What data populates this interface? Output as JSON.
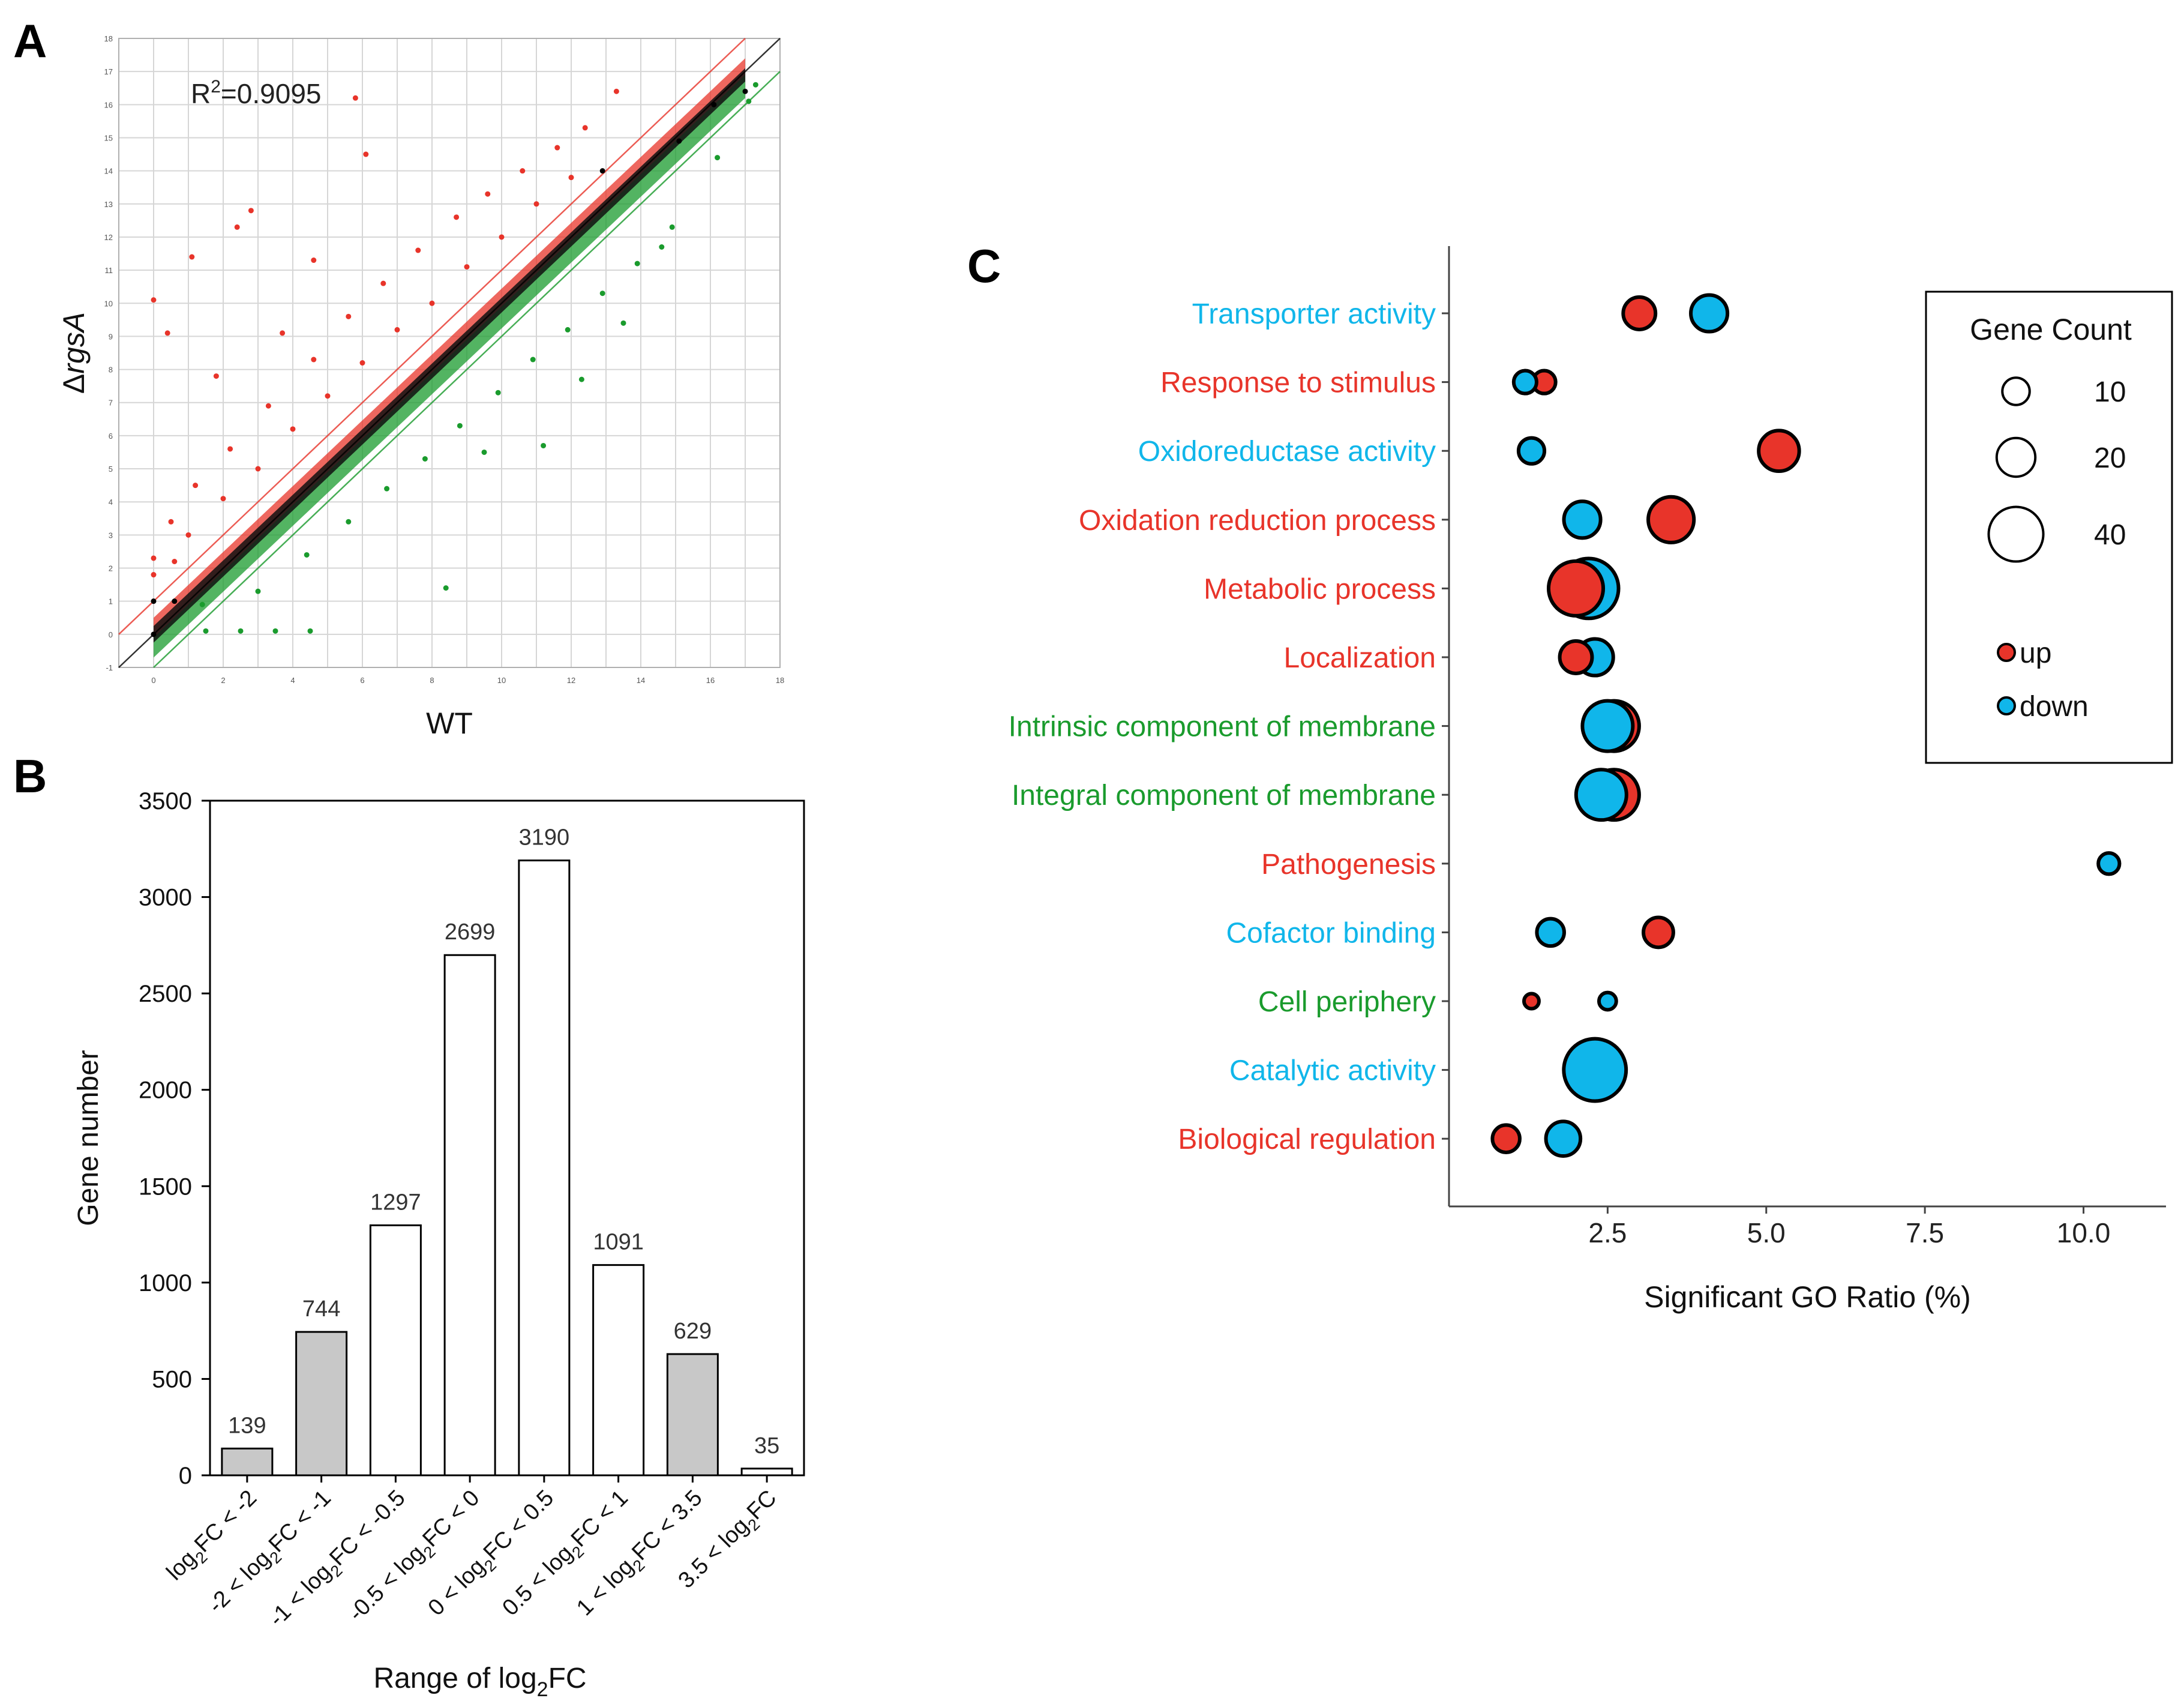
{
  "panels": {
    "a": "A",
    "b": "B",
    "c": "C"
  },
  "colors": {
    "red": "#e8342a",
    "green": "#1a9b2d",
    "blue": "#10b6ea",
    "black": "#000000",
    "bar_gray": "#c8c8c8",
    "grid": "#d6d6d6"
  },
  "chart_data": [
    {
      "id": "A",
      "type": "scatter",
      "title": "",
      "xlabel": "WT",
      "ylabel_prefix": "Δ",
      "ylabel_italic": "rgsA",
      "annotation_base": "R",
      "annotation_sup": "2",
      "annotation_value": "=0.9095",
      "xlim": [
        -1,
        18
      ],
      "ylim": [
        -1,
        18
      ],
      "xticks": [
        0,
        2,
        4,
        6,
        8,
        10,
        12,
        14,
        16,
        18
      ],
      "yticks": [
        -1,
        0,
        1,
        2,
        3,
        4,
        5,
        6,
        7,
        8,
        9,
        10,
        11,
        12,
        13,
        14,
        15,
        16,
        17,
        18
      ],
      "grid": true,
      "reference_lines": [
        {
          "name": "y = x",
          "offset": 0,
          "color": "#000000"
        },
        {
          "name": "up threshold",
          "offset": 1,
          "color": "#e8342a"
        },
        {
          "name": "down threshold",
          "offset": -1,
          "color": "#1a9b2d"
        }
      ],
      "series": [
        {
          "color": "#e8342a",
          "points": [
            [
              0,
              10.1
            ],
            [
              0.4,
              9.1
            ],
            [
              1.1,
              11.4
            ],
            [
              2.4,
              12.3
            ],
            [
              2.8,
              12.8
            ],
            [
              5.8,
              16.2
            ],
            [
              6.1,
              14.5
            ],
            [
              3.7,
              9.1
            ],
            [
              4.6,
              11.3
            ],
            [
              1.8,
              7.8
            ],
            [
              0.5,
              3.4
            ],
            [
              1.2,
              4.5
            ],
            [
              2.2,
              5.6
            ],
            [
              3.3,
              6.9
            ],
            [
              4.6,
              8.3
            ],
            [
              5.6,
              9.6
            ],
            [
              6.6,
              10.6
            ],
            [
              7.6,
              11.6
            ],
            [
              8.7,
              12.6
            ],
            [
              9.6,
              13.3
            ],
            [
              10.6,
              14.0
            ],
            [
              11.6,
              14.7
            ],
            [
              12.4,
              15.3
            ],
            [
              13.3,
              16.4
            ],
            [
              0.0,
              1.8
            ],
            [
              0.0,
              2.3
            ],
            [
              0.6,
              2.2
            ],
            [
              1.0,
              3.0
            ],
            [
              2.0,
              4.1
            ],
            [
              3.0,
              5.0
            ],
            [
              4.0,
              6.2
            ],
            [
              5.0,
              7.2
            ],
            [
              6.0,
              8.2
            ],
            [
              7.0,
              9.2
            ],
            [
              8.0,
              10.0
            ],
            [
              9.0,
              11.1
            ],
            [
              10.0,
              12.0
            ],
            [
              11.0,
              13.0
            ],
            [
              12.0,
              13.8
            ]
          ]
        },
        {
          "color": "#1a9b2d",
          "points": [
            [
              8.4,
              1.4
            ],
            [
              11.2,
              5.7
            ],
            [
              14.6,
              11.7
            ],
            [
              9.5,
              5.5
            ],
            [
              12.3,
              7.7
            ],
            [
              13.5,
              9.4
            ],
            [
              1.5,
              0.1
            ],
            [
              2.5,
              0.1
            ],
            [
              3.5,
              0.1
            ],
            [
              4.5,
              0.1
            ],
            [
              1.4,
              0.9
            ],
            [
              3.0,
              1.3
            ],
            [
              4.4,
              2.4
            ],
            [
              5.6,
              3.4
            ],
            [
              6.7,
              4.4
            ],
            [
              7.8,
              5.3
            ],
            [
              8.8,
              6.3
            ],
            [
              9.9,
              7.3
            ],
            [
              10.9,
              8.3
            ],
            [
              11.9,
              9.2
            ],
            [
              12.9,
              10.3
            ],
            [
              13.9,
              11.2
            ],
            [
              14.9,
              12.3
            ],
            [
              16.2,
              14.4
            ],
            [
              17.1,
              16.1
            ],
            [
              17.3,
              16.6
            ]
          ]
        },
        {
          "color": "#000000",
          "points": [
            [
              0.0,
              0.0
            ],
            [
              0.0,
              1.0
            ],
            [
              0.6,
              1.0
            ],
            [
              16.1,
              16.0
            ],
            [
              17.0,
              16.4
            ],
            [
              12.9,
              14.0
            ],
            [
              15.1,
              14.9
            ]
          ]
        }
      ]
    },
    {
      "id": "B",
      "type": "bar",
      "title": "",
      "xlabel": "Range of log2FC",
      "ylabel": "Gene number",
      "ylim": [
        0,
        3500
      ],
      "yticks": [
        0,
        500,
        1000,
        1500,
        2000,
        2500,
        3000,
        3500
      ],
      "categories": [
        "log2FC < -2",
        "-2 < log2FC < -1",
        "-1 < log2FC < -0.5",
        "-0.5 < log2FC < 0",
        "0 < log2FC < 0.5",
        "0.5 < log2FC < 1",
        "1 < log2FC < 3.5",
        "3.5 < log2FC"
      ],
      "values": [
        139,
        744,
        1297,
        2699,
        3190,
        1091,
        629,
        35
      ],
      "value_labels": [
        "139",
        "744",
        "1297",
        "2699",
        "3190",
        "1091",
        "629",
        "35"
      ],
      "bar_fill": [
        "gray",
        "gray",
        "white",
        "white",
        "white",
        "white",
        "gray",
        "white"
      ]
    },
    {
      "id": "C",
      "type": "scatter",
      "title": "",
      "xlabel": "Significant GO Ratio (%)",
      "xlim": [
        0,
        11.3
      ],
      "xticks": [
        "2.5",
        "5.0",
        "7.5",
        "10.0"
      ],
      "categories": [
        "Transporter activity",
        "Response to stimulus",
        "Oxidoreductase activity",
        "Oxidation reduction process",
        "Metabolic process",
        "Localization",
        "Intrinsic component of membrane",
        "Integral component of membrane",
        "Pathogenesis",
        "Cofactor binding",
        "Cell periphery",
        "Catalytic activity",
        "Biological regulation"
      ],
      "category_colors": [
        "#10b6ea",
        "#e8342a",
        "#10b6ea",
        "#e8342a",
        "#e8342a",
        "#e8342a",
        "#1a9b2d",
        "#1a9b2d",
        "#e8342a",
        "#10b6ea",
        "#1a9b2d",
        "#10b6ea",
        "#e8342a"
      ],
      "legend": {
        "title": "Gene Count",
        "sizes": [
          10,
          20,
          40
        ],
        "size_labels": [
          "10",
          "20",
          "40"
        ],
        "series_labels": [
          "up",
          "down"
        ]
      },
      "series": [
        {
          "name": "up",
          "color": "#e8342a",
          "points": [
            {
              "category": "Transporter activity",
              "x": 3.0,
              "count": 14
            },
            {
              "category": "Response to stimulus",
              "x": 1.5,
              "count": 7
            },
            {
              "category": "Oxidoreductase activity",
              "x": 5.2,
              "count": 22
            },
            {
              "category": "Oxidation reduction process",
              "x": 3.5,
              "count": 28
            },
            {
              "category": "Metabolic process",
              "x": 2.0,
              "count": 40
            },
            {
              "category": "Localization",
              "x": 2.0,
              "count": 14
            },
            {
              "category": "Intrinsic component of membrane",
              "x": 2.6,
              "count": 34
            },
            {
              "category": "Integral component of membrane",
              "x": 2.6,
              "count": 34
            },
            {
              "category": "Cofactor binding",
              "x": 3.3,
              "count": 12
            },
            {
              "category": "Cell periphery",
              "x": 1.3,
              "count": 3
            },
            {
              "category": "Biological regulation",
              "x": 0.9,
              "count": 10
            }
          ]
        },
        {
          "name": "down",
          "color": "#10b6ea",
          "points": [
            {
              "category": "Transporter activity",
              "x": 4.1,
              "count": 18
            },
            {
              "category": "Response to stimulus",
              "x": 1.2,
              "count": 7
            },
            {
              "category": "Oxidoreductase activity",
              "x": 1.3,
              "count": 9
            },
            {
              "category": "Oxidation reduction process",
              "x": 2.1,
              "count": 18
            },
            {
              "category": "Metabolic process",
              "x": 2.2,
              "count": 48
            },
            {
              "category": "Localization",
              "x": 2.3,
              "count": 18
            },
            {
              "category": "Intrinsic component of membrane",
              "x": 2.5,
              "count": 34
            },
            {
              "category": "Integral component of membrane",
              "x": 2.4,
              "count": 34
            },
            {
              "category": "Pathogenesis",
              "x": 10.4,
              "count": 6
            },
            {
              "category": "Cofactor binding",
              "x": 1.6,
              "count": 10
            },
            {
              "category": "Cell periphery",
              "x": 2.5,
              "count": 4
            },
            {
              "category": "Catalytic activity",
              "x": 2.3,
              "count": 52
            },
            {
              "category": "Biological regulation",
              "x": 1.8,
              "count": 16
            }
          ]
        }
      ]
    }
  ]
}
